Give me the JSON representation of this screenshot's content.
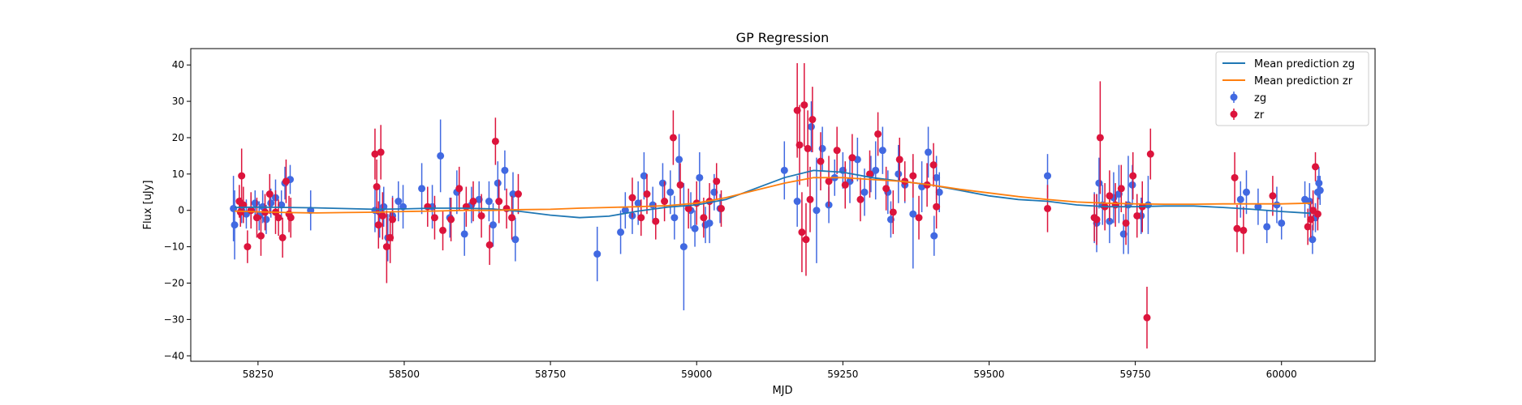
{
  "chart_data": {
    "type": "scatter",
    "title": "GP Regression",
    "xlabel": "MJD",
    "ylabel": "Flux [uJy]",
    "xlim": [
      58135,
      60160
    ],
    "ylim": [
      -41.5,
      44.5
    ],
    "xticks": [
      58250,
      58500,
      58750,
      59000,
      59250,
      59500,
      59750,
      60000
    ],
    "yticks": [
      -40,
      -30,
      -20,
      -10,
      0,
      10,
      20,
      30,
      40
    ],
    "grid": false,
    "legend_position": "top-right",
    "legend": [
      "Mean prediction zg",
      "Mean prediction zr",
      "zg",
      "zr"
    ],
    "colors": {
      "line_zg": "#1f77b4",
      "line_zr": "#ff7f0e",
      "points_zg": "#4169e1",
      "points_zr": "#dc143c"
    },
    "series": [
      {
        "name": "Mean prediction zg",
        "kind": "line",
        "x": [
          58210,
          58250,
          58300,
          58350,
          58400,
          58450,
          58500,
          58550,
          58600,
          58650,
          58700,
          58750,
          58800,
          58850,
          58900,
          58950,
          59000,
          59050,
          59100,
          59150,
          59200,
          59250,
          59300,
          59350,
          59400,
          59450,
          59500,
          59550,
          59600,
          59650,
          59700,
          59750,
          59800,
          59850,
          59900,
          59950,
          60000,
          60050
        ],
        "y": [
          0.8,
          0.9,
          0.8,
          0.7,
          0.5,
          0.3,
          0.4,
          0.6,
          0.6,
          0.4,
          -0.3,
          -1.3,
          -2.0,
          -1.6,
          -0.2,
          0.9,
          1.5,
          3.0,
          6.0,
          9.0,
          11.0,
          10.5,
          9.0,
          8.0,
          7.0,
          5.5,
          4.0,
          3.0,
          2.5,
          1.5,
          1.0,
          1.0,
          1.2,
          1.2,
          0.8,
          0.3,
          -0.3,
          -0.8
        ]
      },
      {
        "name": "Mean prediction zr",
        "kind": "line",
        "x": [
          58210,
          58250,
          58300,
          58350,
          58400,
          58450,
          58500,
          58550,
          58600,
          58650,
          58700,
          58750,
          58800,
          58850,
          58900,
          58950,
          59000,
          59050,
          59100,
          59150,
          59200,
          59250,
          59300,
          59350,
          59400,
          59450,
          59500,
          59550,
          59600,
          59650,
          59700,
          59750,
          59800,
          59850,
          59900,
          59950,
          60000,
          60050
        ],
        "y": [
          -0.2,
          -0.4,
          -0.6,
          -0.7,
          -0.6,
          -0.5,
          -0.3,
          -0.2,
          0.0,
          0.0,
          0.2,
          0.3,
          0.6,
          0.8,
          1.0,
          1.3,
          2.0,
          3.5,
          5.5,
          7.5,
          9.0,
          9.0,
          8.5,
          8.0,
          7.0,
          5.8,
          4.8,
          3.8,
          3.0,
          2.3,
          2.0,
          1.8,
          1.7,
          1.7,
          1.8,
          1.8,
          1.8,
          2.0
        ]
      },
      {
        "name": "zg",
        "kind": "errorbar",
        "x": [
          58208,
          58210,
          58222,
          58230,
          58238,
          58245,
          58252,
          58258,
          58264,
          58272,
          58280,
          58290,
          58296,
          58305,
          58340,
          58450,
          58458,
          58465,
          58472,
          58480,
          58490,
          58498,
          58530,
          58548,
          58562,
          58578,
          58590,
          58603,
          58615,
          58628,
          58645,
          58652,
          58660,
          58672,
          58686,
          58690,
          58830,
          58870,
          58878,
          58890,
          58900,
          58910,
          58925,
          58942,
          58955,
          58962,
          58970,
          58978,
          58990,
          58997,
          59005,
          59015,
          59022,
          59030,
          59040,
          59150,
          59172,
          59196,
          59205,
          59215,
          59226,
          59236,
          59250,
          59262,
          59275,
          59287,
          59298,
          59306,
          59318,
          59327,
          59332,
          59345,
          59356,
          59370,
          59385,
          59396,
          59406,
          59410,
          59415,
          59600,
          59680,
          59684,
          59688,
          59694,
          59706,
          59713,
          59722,
          59730,
          59738,
          59745,
          59760,
          59772,
          59930,
          59940,
          59960,
          59975,
          59992,
          60000,
          60040,
          60048,
          60053,
          60058,
          60062,
          60064,
          60066
        ],
        "y": [
          0.5,
          -4.0,
          0.0,
          -1.0,
          0.0,
          2.0,
          -1.5,
          1.0,
          -2.5,
          2.0,
          3.5,
          1.5,
          7.5,
          8.5,
          0.0,
          0.0,
          -0.5,
          1.0,
          -7.5,
          -1.5,
          2.5,
          1.0,
          6.0,
          1.0,
          15.0,
          -2.0,
          5.0,
          -6.5,
          1.5,
          3.0,
          2.5,
          -4.0,
          7.5,
          11.0,
          4.5,
          -8.0,
          -12.0,
          -6.0,
          0.0,
          -1.5,
          2.0,
          9.5,
          1.5,
          7.5,
          5.0,
          -2.0,
          14.0,
          -10.0,
          0.0,
          -5.0,
          9.0,
          -4.0,
          -3.5,
          5.0,
          0.5,
          11.0,
          2.5,
          23.0,
          0.0,
          17.0,
          1.5,
          9.0,
          11.0,
          8.0,
          14.0,
          5.0,
          10.0,
          11.0,
          16.5,
          5.0,
          -2.5,
          10.0,
          7.0,
          -1.0,
          6.5,
          16.0,
          -7.0,
          9.0,
          5.0,
          9.5,
          -2.0,
          -3.5,
          7.5,
          1.5,
          -3.0,
          3.5,
          4.5,
          -6.5,
          1.5,
          7.0,
          -1.5,
          1.5,
          3.0,
          5.0,
          1.0,
          -4.5,
          1.5,
          -3.5,
          3.0,
          2.5,
          -8.0,
          -2.0,
          5.0,
          7.5,
          5.5
        ],
        "err": [
          9.0,
          9.5,
          3.5,
          4.0,
          4.0,
          3.5,
          4.0,
          4.5,
          4.0,
          4.0,
          5.0,
          4.0,
          4.5,
          4.0,
          5.5,
          6.0,
          7.0,
          5.5,
          6.5,
          5.5,
          5.5,
          6.0,
          7.0,
          6.0,
          10.0,
          5.5,
          6.0,
          6.0,
          5.0,
          5.0,
          5.5,
          6.0,
          6.0,
          5.5,
          6.0,
          6.0,
          7.5,
          6.0,
          5.0,
          5.0,
          6.0,
          6.5,
          5.0,
          5.5,
          6.0,
          6.0,
          7.0,
          17.5,
          5.0,
          5.0,
          7.0,
          5.0,
          5.5,
          5.0,
          4.0,
          8.0,
          7.0,
          7.0,
          14.5,
          6.0,
          5.0,
          5.0,
          5.0,
          6.0,
          6.0,
          6.5,
          5.0,
          8.0,
          6.5,
          6.0,
          5.0,
          8.0,
          5.0,
          15.0,
          7.0,
          7.0,
          5.5,
          6.0,
          5.5,
          6.0,
          7.0,
          8.0,
          7.0,
          5.5,
          6.0,
          7.0,
          8.0,
          5.5,
          13.5,
          5.5,
          5.0,
          8.0,
          5.0,
          6.0,
          5.0,
          4.5,
          5.0,
          4.5,
          5.0,
          5.0,
          4.0,
          4.0,
          4.5,
          4.5,
          4.0
        ]
      },
      {
        "name": "zr",
        "kind": "errorbar",
        "x": [
          58218,
          58220,
          58222,
          58225,
          58232,
          58238,
          58248,
          58255,
          58262,
          58270,
          58280,
          58285,
          58292,
          58298,
          58303,
          58306,
          58450,
          58453,
          58456,
          58460,
          58463,
          58470,
          58476,
          58480,
          58540,
          58552,
          58566,
          58580,
          58594,
          58606,
          58618,
          58632,
          58646,
          58656,
          58662,
          58675,
          58684,
          58695,
          58890,
          58905,
          58915,
          58930,
          58945,
          58960,
          58972,
          58986,
          59000,
          59012,
          59022,
          59034,
          59042,
          59172,
          59176,
          59180,
          59184,
          59187,
          59190,
          59194,
          59198,
          59212,
          59226,
          59240,
          59254,
          59266,
          59280,
          59296,
          59310,
          59324,
          59336,
          59347,
          59356,
          59370,
          59380,
          59394,
          59405,
          59410,
          59600,
          59680,
          59684,
          59690,
          59698,
          59706,
          59716,
          59726,
          59734,
          59746,
          59753,
          59762,
          59770,
          59776,
          59920,
          59924,
          59935,
          59985,
          60045,
          60050,
          60054,
          60058,
          60062
        ],
        "y": [
          2.5,
          -0.5,
          9.5,
          1.5,
          -10.0,
          0.0,
          -2.0,
          -7.0,
          -0.5,
          4.5,
          -0.5,
          -2.0,
          -7.5,
          8.0,
          -1.0,
          -2.0,
          15.5,
          6.5,
          -4.0,
          16.0,
          -1.5,
          -10.0,
          -7.5,
          -2.5,
          1.0,
          -2.0,
          -5.5,
          -2.5,
          6.0,
          1.0,
          2.5,
          -1.5,
          -9.5,
          19.0,
          2.5,
          0.5,
          -2.0,
          4.5,
          3.5,
          -2.0,
          4.5,
          -3.0,
          2.5,
          20.0,
          7.0,
          0.5,
          2.0,
          -2.0,
          2.5,
          8.0,
          0.5,
          27.5,
          18.0,
          -6.0,
          29.0,
          -8.0,
          17.0,
          3.0,
          25.0,
          13.5,
          8.0,
          16.5,
          7.0,
          14.5,
          3.0,
          10.0,
          21.0,
          6.0,
          -0.5,
          14.0,
          8.0,
          9.5,
          -2.0,
          7.0,
          12.5,
          1.0,
          0.5,
          -2.0,
          -2.5,
          20.0,
          1.0,
          4.0,
          1.5,
          6.0,
          -3.5,
          9.5,
          -1.5,
          1.0,
          -29.5,
          15.5,
          9.0,
          -5.0,
          -5.5,
          4.0,
          -4.5,
          -2.5,
          0.0,
          12.0,
          -1.0
        ],
        "err": [
          4.5,
          4.0,
          7.5,
          5.0,
          4.5,
          5.0,
          5.5,
          5.5,
          5.0,
          5.5,
          6.0,
          5.0,
          5.5,
          6.0,
          5.0,
          5.5,
          7.0,
          7.5,
          6.5,
          7.5,
          6.5,
          10.0,
          7.0,
          6.0,
          5.5,
          6.0,
          5.5,
          6.0,
          6.0,
          5.5,
          5.5,
          6.0,
          5.5,
          6.5,
          6.0,
          5.5,
          6.0,
          5.5,
          5.5,
          5.0,
          5.5,
          5.0,
          5.5,
          7.5,
          6.0,
          5.5,
          6.0,
          5.5,
          5.0,
          5.0,
          5.0,
          13.0,
          11.0,
          11.0,
          11.5,
          10.0,
          10.5,
          9.0,
          9.0,
          8.0,
          7.0,
          6.5,
          6.5,
          6.5,
          6.0,
          6.5,
          6.0,
          6.0,
          6.0,
          6.0,
          5.5,
          6.0,
          6.0,
          6.0,
          6.0,
          6.0,
          6.5,
          6.5,
          7.0,
          15.5,
          6.5,
          7.0,
          6.0,
          6.5,
          6.0,
          6.5,
          6.0,
          7.0,
          8.5,
          7.0,
          7.0,
          6.5,
          6.5,
          5.5,
          5.0,
          5.0,
          5.5,
          4.0,
          4.5
        ]
      }
    ]
  }
}
